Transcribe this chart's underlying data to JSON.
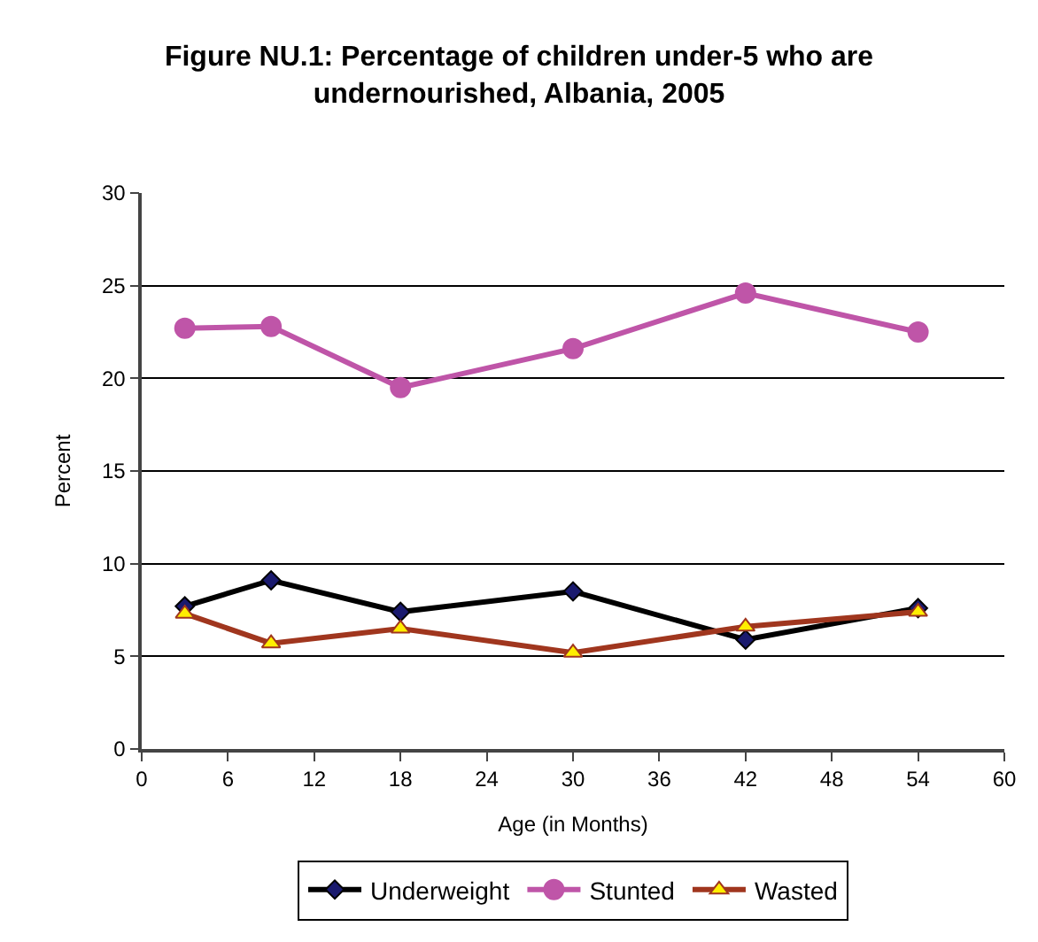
{
  "chart_data": {
    "type": "line",
    "title": "Figure NU.1: Percentage of children under-5 who are undernourished, Albania, 2005",
    "xlabel": "Age (in Months)",
    "ylabel": "Percent",
    "x": [
      3,
      9,
      18,
      30,
      42,
      54
    ],
    "series": [
      {
        "name": "Underweight",
        "color": "#000000",
        "marker": "diamond",
        "values": [
          7.7,
          9.1,
          7.4,
          8.5,
          5.9,
          7.6
        ]
      },
      {
        "name": "Stunted",
        "color": "#bf55a8",
        "marker": "circle",
        "values": [
          22.7,
          22.8,
          19.5,
          21.6,
          24.6,
          22.5
        ]
      },
      {
        "name": "Wasted",
        "color": "#a0361e",
        "marker": "triangle",
        "values": [
          7.3,
          5.7,
          6.5,
          5.2,
          6.6,
          7.4
        ]
      }
    ],
    "xlim": [
      0,
      60
    ],
    "xticks": [
      0,
      6,
      12,
      18,
      24,
      30,
      36,
      42,
      48,
      54,
      60
    ],
    "ylim": [
      0,
      30
    ],
    "yticks": [
      0,
      5,
      10,
      15,
      20,
      25,
      30
    ],
    "grid": "y",
    "legend": "bottom",
    "line_style": "solid"
  }
}
